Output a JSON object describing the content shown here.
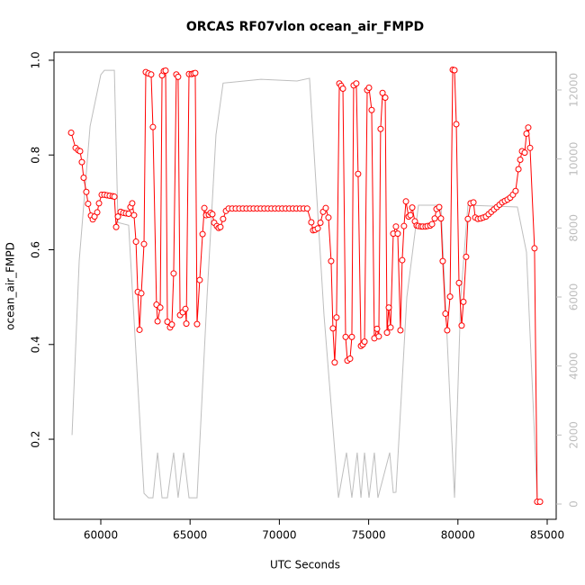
{
  "chart_data": {
    "type": "line",
    "title": "ORCAS RF07vlon ocean_air_FMPD",
    "xlabel": "UTC Seconds",
    "ylabel": "ocean_air_FMPD",
    "xlim": [
      57379,
      85504
    ],
    "xticks": [
      60000,
      65000,
      70000,
      75000,
      80000,
      85000
    ],
    "ylim": [
      0.031,
      1.017
    ],
    "yticks": [
      0.2,
      0.4,
      0.6,
      0.8,
      {
        "value": 1,
        "label": "1.0"
      }
    ],
    "y2lim": [
      -443,
      13095
    ],
    "y2ticks": [
      0,
      2000,
      4000,
      6000,
      8000,
      10000,
      12000
    ],
    "y2tick_color": "#bebebe",
    "series": [
      {
        "color": "#ff0000",
        "markers": true,
        "x": [
          58340,
          58590,
          58740,
          58840,
          58940,
          59040,
          59190,
          59290,
          59450,
          59550,
          59650,
          59800,
          59900,
          60050,
          60200,
          60350,
          60500,
          60660,
          60760,
          60860,
          60960,
          61110,
          61260,
          61410,
          61560,
          61660,
          61760,
          61860,
          61970,
          62070,
          62170,
          62270,
          62420,
          62520,
          62670,
          62820,
          62920,
          63120,
          63180,
          63330,
          63430,
          63530,
          63630,
          63730,
          63880,
          63980,
          64080,
          64230,
          64330,
          64440,
          64590,
          64740,
          64790,
          64940,
          65090,
          65190,
          65290,
          65390,
          65540,
          65700,
          65800,
          65900,
          66050,
          66150,
          66250,
          66350,
          66500,
          66600,
          66700,
          66850,
          67010,
          67160,
          67360,
          67560,
          67760,
          67960,
          68160,
          68360,
          68560,
          68760,
          68960,
          69160,
          69360,
          69560,
          69760,
          69960,
          70160,
          70360,
          70560,
          70760,
          70960,
          71160,
          71360,
          71560,
          71790,
          71890,
          72000,
          72150,
          72300,
          72450,
          72600,
          72750,
          72900,
          73000,
          73100,
          73200,
          73360,
          73460,
          73560,
          73710,
          73810,
          73960,
          74060,
          74160,
          74310,
          74410,
          74570,
          74670,
          74770,
          74920,
          75020,
          75170,
          75320,
          75470,
          75570,
          75670,
          75780,
          75930,
          76030,
          76130,
          76230,
          76380,
          76530,
          76630,
          76780,
          76880,
          76980,
          77090,
          77240,
          77340,
          77440,
          77590,
          77690,
          77790,
          77940,
          78040,
          78190,
          78300,
          78450,
          78550,
          78700,
          78800,
          78950,
          79050,
          79150,
          79300,
          79400,
          79560,
          79710,
          79810,
          79910,
          80060,
          80210,
          80310,
          80460,
          80560,
          80710,
          80870,
          80970,
          81120,
          81270,
          81420,
          81570,
          81720,
          81870,
          82020,
          82180,
          82330,
          82480,
          82630,
          82780,
          82930,
          83080,
          83230,
          83390,
          83490,
          83590,
          83740,
          83840,
          83940,
          84040,
          84290,
          84440,
          84600
        ],
        "values": [
          0.847,
          0.815,
          0.81,
          0.808,
          0.785,
          0.752,
          0.722,
          0.697,
          0.672,
          0.664,
          0.67,
          0.679,
          0.698,
          0.716,
          0.716,
          0.715,
          0.714,
          0.713,
          0.712,
          0.648,
          0.67,
          0.68,
          0.678,
          0.677,
          0.676,
          0.69,
          0.698,
          0.673,
          0.617,
          0.511,
          0.431,
          0.508,
          0.612,
          0.975,
          0.972,
          0.97,
          0.859,
          0.484,
          0.449,
          0.478,
          0.968,
          0.977,
          0.978,
          0.448,
          0.436,
          0.442,
          0.55,
          0.97,
          0.965,
          0.462,
          0.468,
          0.475,
          0.444,
          0.971,
          0.971,
          0.972,
          0.973,
          0.443,
          0.536,
          0.633,
          0.688,
          0.673,
          0.674,
          0.678,
          0.675,
          0.657,
          0.65,
          0.646,
          0.648,
          0.665,
          0.682,
          0.687,
          0.687,
          0.687,
          0.687,
          0.687,
          0.687,
          0.687,
          0.687,
          0.687,
          0.687,
          0.687,
          0.687,
          0.687,
          0.687,
          0.687,
          0.687,
          0.687,
          0.687,
          0.687,
          0.687,
          0.687,
          0.687,
          0.687,
          0.658,
          0.641,
          0.642,
          0.645,
          0.657,
          0.68,
          0.688,
          0.668,
          0.576,
          0.434,
          0.362,
          0.457,
          0.951,
          0.946,
          0.94,
          0.416,
          0.366,
          0.37,
          0.416,
          0.947,
          0.951,
          0.76,
          0.397,
          0.4,
          0.406,
          0.937,
          0.942,
          0.895,
          0.413,
          0.433,
          0.417,
          0.855,
          0.931,
          0.921,
          0.425,
          0.478,
          0.436,
          0.634,
          0.649,
          0.634,
          0.43,
          0.578,
          0.65,
          0.702,
          0.67,
          0.673,
          0.689,
          0.66,
          0.651,
          0.65,
          0.649,
          0.649,
          0.649,
          0.65,
          0.651,
          0.654,
          0.666,
          0.686,
          0.69,
          0.666,
          0.576,
          0.465,
          0.43,
          0.501,
          0.98,
          0.979,
          0.865,
          0.53,
          0.44,
          0.49,
          0.585,
          0.665,
          0.698,
          0.7,
          0.668,
          0.665,
          0.666,
          0.668,
          0.67,
          0.675,
          0.68,
          0.685,
          0.69,
          0.695,
          0.7,
          0.703,
          0.706,
          0.71,
          0.716,
          0.724,
          0.77,
          0.79,
          0.808,
          0.805,
          0.845,
          0.858,
          0.815,
          0.603,
          0.068,
          0.068
        ]
      },
      {
        "color": "#bebebe",
        "axis": "y2",
        "markers": false,
        "x": [
          58390,
          58790,
          59400,
          60000,
          60200,
          60760,
          60960,
          61560,
          62420,
          62670,
          62920,
          63180,
          63430,
          63730,
          64080,
          64330,
          64640,
          64940,
          65390,
          65950,
          66450,
          66850,
          68970,
          70990,
          71690,
          72500,
          73310,
          73760,
          74060,
          74360,
          74570,
          74770,
          75020,
          75320,
          75520,
          76180,
          76380,
          76530,
          77140,
          77790,
          79050,
          79810,
          80160,
          80560,
          83330,
          83840,
          84440
        ],
        "values": [
          2000,
          7040,
          10950,
          12440,
          12570,
          12570,
          8160,
          8080,
          310,
          180,
          180,
          1490,
          180,
          180,
          1490,
          180,
          1490,
          180,
          180,
          6000,
          10700,
          12200,
          12310,
          12260,
          12340,
          5480,
          180,
          1490,
          180,
          1490,
          180,
          1490,
          180,
          1490,
          180,
          1490,
          330,
          340,
          6000,
          8660,
          8660,
          180,
          6000,
          8660,
          8610,
          7300,
          180
        ]
      }
    ]
  }
}
